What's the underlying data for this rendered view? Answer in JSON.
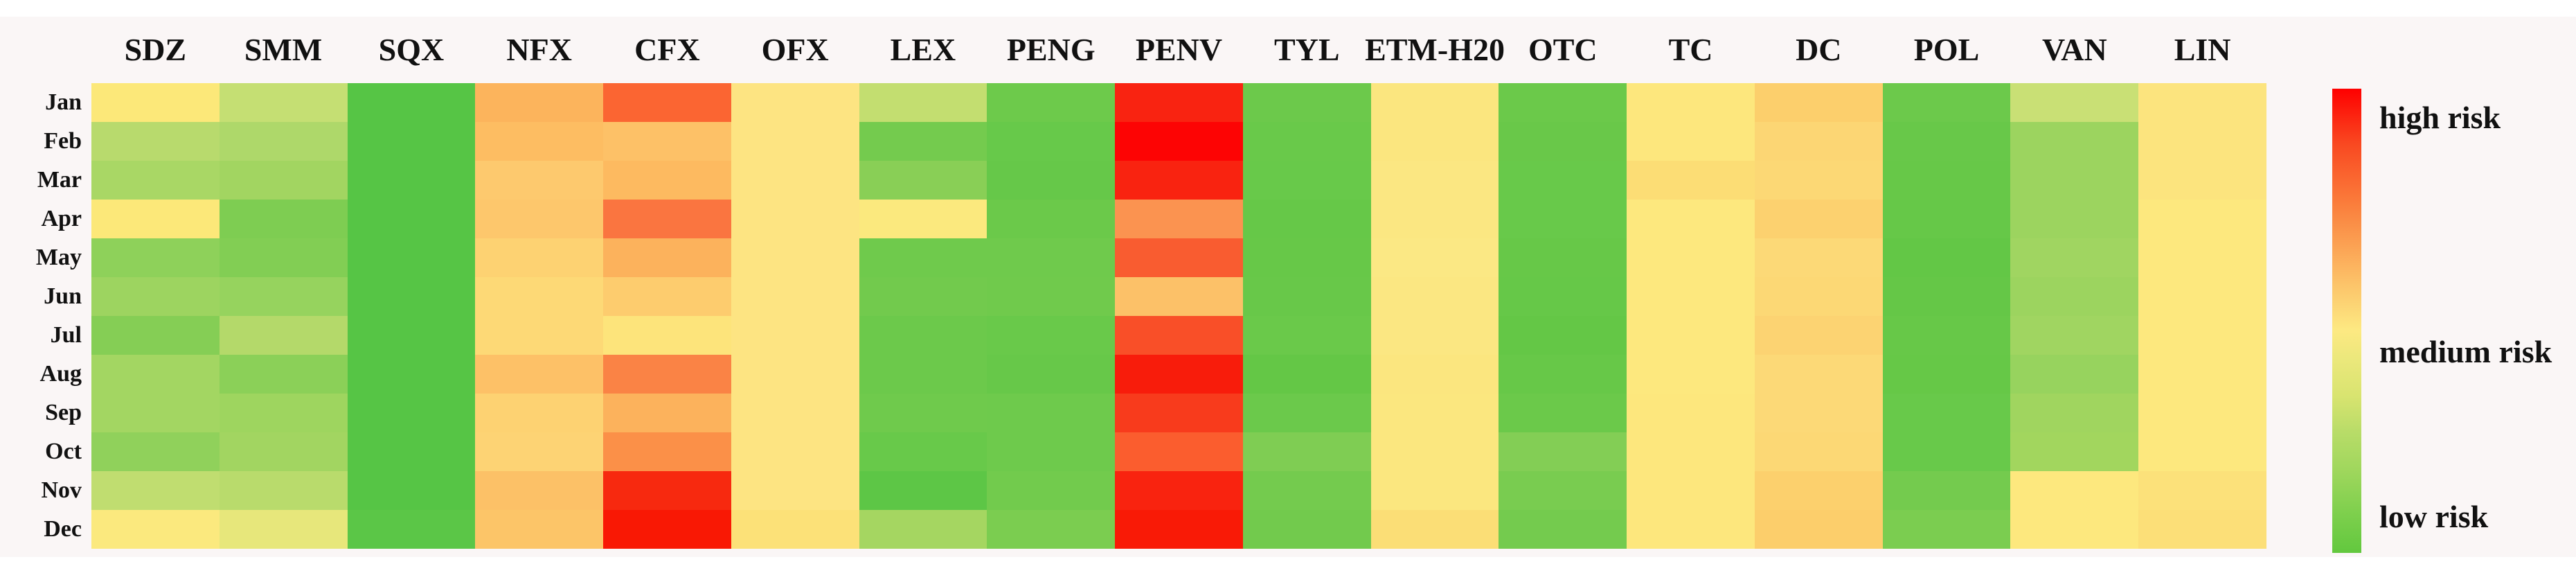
{
  "figure": {
    "columns": [
      "SDZ",
      "SMM",
      "SQX",
      "NFX",
      "CFX",
      "OFX",
      "LEX",
      "PENG",
      "PENV",
      "TYL",
      "ETM-H20",
      "OTC",
      "TC",
      "DC",
      "POL",
      "VAN",
      "LIN"
    ],
    "rows": [
      "Jan",
      "Feb",
      "Mar",
      "Apr",
      "May",
      "Jun",
      "Jul",
      "Aug",
      "Sep",
      "Oct",
      "Nov",
      "Dec"
    ],
    "legend": {
      "high": "high risk",
      "medium": "medium risk",
      "low": "low risk"
    }
  },
  "chart_data": {
    "type": "heatmap",
    "x": [
      "SDZ",
      "SMM",
      "SQX",
      "NFX",
      "CFX",
      "OFX",
      "LEX",
      "PENG",
      "PENV",
      "TYL",
      "ETM-H20",
      "OTC",
      "TC",
      "DC",
      "POL",
      "VAN",
      "LIN"
    ],
    "y": [
      "Jan",
      "Feb",
      "Mar",
      "Apr",
      "May",
      "Jun",
      "Jul",
      "Aug",
      "Sep",
      "Oct",
      "Nov",
      "Dec"
    ],
    "value_scale": {
      "0": "low risk",
      "0.5": "medium risk",
      "1": "high risk"
    },
    "colormap": {
      "low": "#62c83e",
      "medium": "#fde982",
      "high": "#fe0000"
    },
    "legend_position": "right",
    "grid": false,
    "values": [
      [
        0.5,
        0.35,
        0.05,
        0.66,
        0.8,
        0.51,
        0.35,
        0.11,
        0.95,
        0.11,
        0.5,
        0.11,
        0.5,
        0.57,
        0.11,
        0.36,
        0.51
      ],
      [
        0.32,
        0.29,
        0.05,
        0.63,
        0.62,
        0.51,
        0.13,
        0.1,
        1.0,
        0.1,
        0.5,
        0.1,
        0.5,
        0.55,
        0.1,
        0.24,
        0.51
      ],
      [
        0.27,
        0.25,
        0.05,
        0.6,
        0.64,
        0.51,
        0.18,
        0.09,
        0.95,
        0.1,
        0.5,
        0.1,
        0.53,
        0.55,
        0.09,
        0.24,
        0.51
      ],
      [
        0.5,
        0.16,
        0.05,
        0.6,
        0.78,
        0.51,
        0.5,
        0.1,
        0.71,
        0.09,
        0.5,
        0.1,
        0.5,
        0.57,
        0.09,
        0.24,
        0.5
      ],
      [
        0.2,
        0.17,
        0.05,
        0.56,
        0.66,
        0.51,
        0.12,
        0.12,
        0.82,
        0.09,
        0.5,
        0.09,
        0.5,
        0.54,
        0.08,
        0.25,
        0.5
      ],
      [
        0.24,
        0.22,
        0.05,
        0.54,
        0.59,
        0.51,
        0.13,
        0.12,
        0.62,
        0.1,
        0.5,
        0.09,
        0.5,
        0.55,
        0.09,
        0.24,
        0.5
      ],
      [
        0.17,
        0.31,
        0.05,
        0.54,
        0.51,
        0.51,
        0.11,
        0.1,
        0.84,
        0.1,
        0.5,
        0.08,
        0.5,
        0.56,
        0.09,
        0.25,
        0.5
      ],
      [
        0.26,
        0.19,
        0.05,
        0.62,
        0.75,
        0.51,
        0.11,
        0.09,
        0.96,
        0.08,
        0.5,
        0.09,
        0.5,
        0.54,
        0.09,
        0.23,
        0.5
      ],
      [
        0.26,
        0.24,
        0.05,
        0.56,
        0.66,
        0.51,
        0.12,
        0.11,
        0.9,
        0.1,
        0.5,
        0.1,
        0.5,
        0.54,
        0.1,
        0.25,
        0.5
      ],
      [
        0.2,
        0.25,
        0.05,
        0.56,
        0.72,
        0.51,
        0.1,
        0.11,
        0.82,
        0.16,
        0.5,
        0.17,
        0.5,
        0.55,
        0.1,
        0.25,
        0.5
      ],
      [
        0.34,
        0.32,
        0.05,
        0.62,
        0.94,
        0.51,
        0.07,
        0.13,
        0.95,
        0.13,
        0.5,
        0.15,
        0.5,
        0.57,
        0.13,
        0.5,
        0.52
      ],
      [
        0.5,
        0.43,
        0.06,
        0.61,
        0.97,
        0.52,
        0.26,
        0.15,
        0.97,
        0.13,
        0.53,
        0.13,
        0.5,
        0.58,
        0.15,
        0.5,
        0.52
      ]
    ],
    "colors": [
      [
        "#fce879",
        "#c5df73",
        "#56c545",
        "#fcb45c",
        "#fb6532",
        "#fde482",
        "#c3de70",
        "#6dca4b",
        "#f92311",
        "#6cc94b",
        "#fbe67f",
        "#6bc94a",
        "#fde77d",
        "#fccf6c",
        "#6cc94b",
        "#c9e075",
        "#fce47e"
      ],
      [
        "#b8da6d",
        "#aed86a",
        "#56c545",
        "#fdbd62",
        "#fdc167",
        "#fde482",
        "#74cb4e",
        "#67c94a",
        "#fd0404",
        "#69c94a",
        "#fbe67f",
        "#69c849",
        "#fde77d",
        "#fcd674",
        "#68c849",
        "#9cd45f",
        "#fce47e"
      ],
      [
        "#a9d765",
        "#a2d561",
        "#56c545",
        "#fdc96e",
        "#fdba60",
        "#fde482",
        "#89cf56",
        "#66c849",
        "#f92310",
        "#68c94a",
        "#fbe782",
        "#68c94a",
        "#fcdd75",
        "#fcd875",
        "#67c848",
        "#9cd45f",
        "#fce47e"
      ],
      [
        "#fce879",
        "#7ecd52",
        "#56c545",
        "#fdc76c",
        "#fa7540",
        "#fde482",
        "#fbe97e",
        "#6bc94a",
        "#fb9350",
        "#66c848",
        "#fbe782",
        "#68c94a",
        "#fde87e",
        "#fcd16f",
        "#66c848",
        "#9cd45f",
        "#fde87e"
      ],
      [
        "#8ed15a",
        "#82ce54",
        "#56c545",
        "#fdd272",
        "#fcb25c",
        "#fde482",
        "#6fca4c",
        "#6fca4c",
        "#f95c30",
        "#67c848",
        "#fbe884",
        "#67c848",
        "#fde87e",
        "#fcd977",
        "#63c746",
        "#a0d561",
        "#fde87e"
      ],
      [
        "#9dd460",
        "#96d35e",
        "#56c545",
        "#fdd976",
        "#fdcc6e",
        "#fde482",
        "#72ca4d",
        "#70ca4c",
        "#fcc168",
        "#68c849",
        "#fbe782",
        "#66c848",
        "#fde87e",
        "#fcd875",
        "#65c747",
        "#9cd45f",
        "#fde87e"
      ],
      [
        "#85ce55",
        "#b4d96a",
        "#56c545",
        "#fdd976",
        "#fde47b",
        "#fde482",
        "#6cc94b",
        "#69c94a",
        "#f94f28",
        "#6ac94a",
        "#fbe782",
        "#64c746",
        "#fde87e",
        "#fcd372",
        "#67c848",
        "#a0d561",
        "#fde87e"
      ],
      [
        "#a3d662",
        "#8bd058",
        "#56c545",
        "#fdc167",
        "#fa8345",
        "#fde482",
        "#6cc94b",
        "#67c849",
        "#f81c0b",
        "#64c746",
        "#fbe67f",
        "#67c848",
        "#fde87e",
        "#fcd977",
        "#66c847",
        "#97d35e",
        "#fde87e"
      ],
      [
        "#a3d662",
        "#9ed55f",
        "#56c545",
        "#fdd272",
        "#fcb25c",
        "#fde482",
        "#6fca4c",
        "#6eca4c",
        "#f83b1c",
        "#6bc94b",
        "#fbe77f",
        "#6bc94a",
        "#fde77d",
        "#fcd977",
        "#68c94a",
        "#a0d55f",
        "#fde87e"
      ],
      [
        "#90d15b",
        "#a2d561",
        "#56c545",
        "#fdd374",
        "#fb9048",
        "#fde482",
        "#68c94a",
        "#6eca4c",
        "#fb5d2e",
        "#7fcd53",
        "#fbe77f",
        "#83ce55",
        "#fde77d",
        "#fcd875",
        "#68c94a",
        "#a2d65e",
        "#fde87e"
      ],
      [
        "#c0dd70",
        "#b9db6c",
        "#56c545",
        "#fcc167",
        "#f7290f",
        "#fde482",
        "#5dc646",
        "#72cb4d",
        "#f9230f",
        "#74cb4e",
        "#fbe77f",
        "#79cc50",
        "#fde77d",
        "#fcd06d",
        "#74cb4e",
        "#fde87e",
        "#fce17a"
      ],
      [
        "#fbe97e",
        "#e7e77b",
        "#5bc647",
        "#fcc568",
        "#f91804",
        "#fce178",
        "#a5d661",
        "#7bcd50",
        "#f91a06",
        "#72ca4d",
        "#fbde76",
        "#74cb4e",
        "#fde77d",
        "#fcce6b",
        "#7bcd50",
        "#fde87e",
        "#fcdf78"
      ]
    ]
  }
}
